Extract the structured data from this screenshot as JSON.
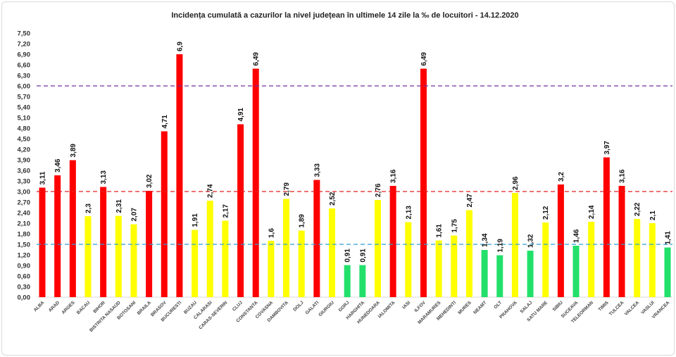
{
  "chart_data": {
    "type": "bar",
    "title": "Incidența cumulată a cazurilor la nivel județean în ultimele 14 zile   la ‰ de locuitori  - 14.12.2020",
    "xlabel": "",
    "ylabel": "",
    "ylim": [
      0,
      7.5
    ],
    "ytick_step": 0.3,
    "grid": false,
    "decimal_separator": ",",
    "categories": [
      "ALBA",
      "ARAD",
      "ARGES",
      "BACAU",
      "BIHOR",
      "BISTRITA NASAUD",
      "BOTOSANI",
      "BRAILA",
      "BRASOV",
      "BUCURESTI",
      "BUZAU",
      "CALARASI",
      "CARAS-SEVERIN",
      "CLUJ",
      "CONSTANTA",
      "COVASNA",
      "DAMBOVITA",
      "DOLJ",
      "GALATI",
      "GIURGIU",
      "GORJ",
      "HARGHITA",
      "HUNEDOARA",
      "IALOMITA",
      "IASI",
      "ILFOV",
      "MARAMURES",
      "MEHEDINTI",
      "MURES",
      "NEAMT",
      "OLT",
      "PRAHOVA",
      "SALAJ",
      "SATU MARE",
      "SIBIU",
      "SUCEAVA",
      "TELEORMAN",
      "TIMIS",
      "TULCEA",
      "VALCEA",
      "VASLUI",
      "VRANCEA"
    ],
    "values": [
      3.11,
      3.46,
      3.89,
      2.3,
      3.13,
      2.31,
      2.07,
      3.02,
      4.71,
      6.9,
      1.91,
      2.74,
      2.17,
      4.91,
      6.49,
      1.6,
      2.79,
      1.89,
      3.33,
      2.52,
      0.91,
      0.91,
      2.76,
      3.16,
      2.13,
      6.49,
      1.61,
      1.75,
      2.47,
      1.34,
      1.19,
      2.96,
      1.32,
      2.12,
      3.2,
      1.46,
      2.14,
      3.97,
      3.16,
      2.22,
      2.1,
      1.41
    ],
    "reference_lines": [
      {
        "value": 6.0,
        "color": "#7030a0"
      },
      {
        "value": 3.0,
        "color": "#e02020"
      },
      {
        "value": 1.5,
        "color": "#2a9fd6"
      }
    ],
    "colors": {
      "red": "#ff0000",
      "yellow": "#ffff00",
      "green": "#22e06a"
    },
    "color_thresholds": {
      "red_min": 3.0,
      "yellow_min": 1.5
    }
  }
}
